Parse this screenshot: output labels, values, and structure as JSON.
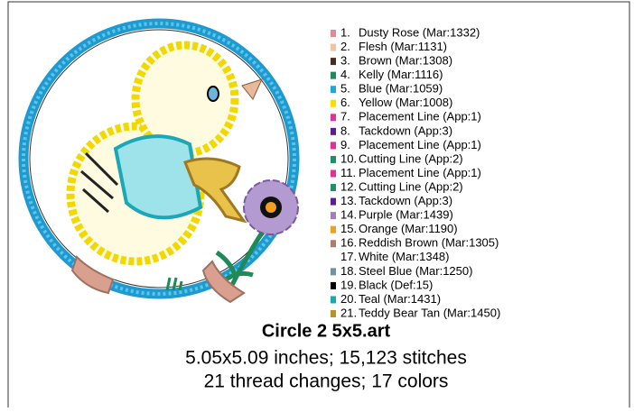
{
  "threads": [
    {
      "label": "1.",
      "name": "Dusty Rose (Mar:1332)",
      "color": "#e08a96"
    },
    {
      "label": "2.",
      "name": "Flesh (Mar:1131)",
      "color": "#f2c3a0"
    },
    {
      "label": "3.",
      "name": "Brown (Mar:1308)",
      "color": "#4a2c1f"
    },
    {
      "label": "4.",
      "name": "Kelly (Mar:1116)",
      "color": "#1f8a57"
    },
    {
      "label": "5.",
      "name": "Blue (Mar:1059)",
      "color": "#22a7d8"
    },
    {
      "label": "6.",
      "name": "Yellow (Mar:1008)",
      "color": "#f5e000"
    },
    {
      "label": "7.",
      "name": "Placement Line (App:1)",
      "color": "#e0309a"
    },
    {
      "label": "8.",
      "name": "Tackdown (App:3)",
      "color": "#5a1e9a"
    },
    {
      "label": "9.",
      "name": "Placement Line (App:1)",
      "color": "#e0309a"
    },
    {
      "label": "10.",
      "name": "Cutting Line (App:2)",
      "color": "#1f8f6a"
    },
    {
      "label": "11.",
      "name": "Placement Line (App:1)",
      "color": "#e0309a"
    },
    {
      "label": "12.",
      "name": "Cutting Line (App:2)",
      "color": "#1f8f6a"
    },
    {
      "label": "13.",
      "name": "Tackdown (App:3)",
      "color": "#5a1e9a"
    },
    {
      "label": "14.",
      "name": "Purple (Mar:1439)",
      "color": "#9e7fb6"
    },
    {
      "label": "15.",
      "name": "Orange (Mar:1190)",
      "color": "#f0a020"
    },
    {
      "label": "16.",
      "name": "Reddish Brown (Mar:1305)",
      "color": "#b07a6a"
    },
    {
      "label": "17.",
      "name": "White (Mar:1348)",
      "color": "#ffffff"
    },
    {
      "label": "18.",
      "name": "Steel Blue (Mar:1250)",
      "color": "#6a95a8"
    },
    {
      "label": "19.",
      "name": "Black (Def:15)",
      "color": "#000000"
    },
    {
      "label": "20.",
      "name": "Teal (Mar:1431)",
      "color": "#17a8b0"
    },
    {
      "label": "21.",
      "name": "Teddy Bear Tan (Mar:1450)",
      "color": "#b8922a"
    }
  ],
  "info": {
    "title": "Circle 2 5x5.art",
    "size_line": "5.05x5.09 inches; 15,123 stitches",
    "changes_line": "21 thread changes; 17 colors"
  }
}
